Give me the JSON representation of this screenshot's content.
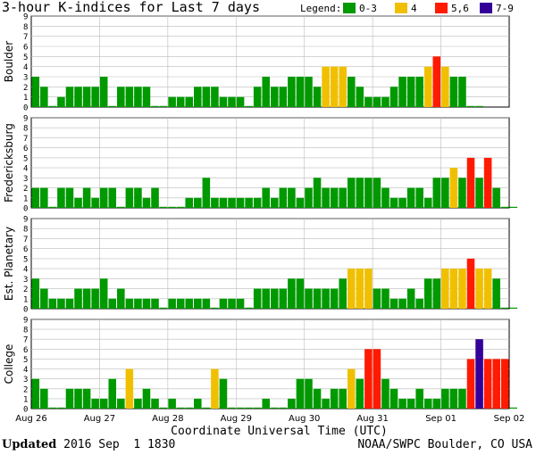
{
  "chart_data": {
    "type": "bar",
    "title": "3-hour K-indices for Last 7 days",
    "legend_title": "Legend:",
    "legend": [
      {
        "label": "0-3",
        "color": "#009900"
      },
      {
        "label": "4",
        "color": "#f0c000"
      },
      {
        "label": "5,6",
        "color": "#ff1a00"
      },
      {
        "label": "7-9",
        "color": "#330099"
      }
    ],
    "ylim": [
      0,
      9
    ],
    "yticks": [
      "0",
      "1",
      "2",
      "3",
      "4",
      "5",
      "6",
      "7",
      "8",
      "9"
    ],
    "xlabel": "Coordinate Universal Time (UTC)",
    "xticks": [
      "Aug 26",
      "Aug 27",
      "Aug 28",
      "Aug 29",
      "Aug 30",
      "Aug 31",
      "Sep 01",
      "Sep 02"
    ],
    "intervals_per_day": 8,
    "series": [
      {
        "name": "Boulder",
        "values": [
          3,
          2,
          0,
          1,
          2,
          2,
          2,
          2,
          3,
          0,
          2,
          2,
          2,
          2,
          0,
          0,
          1,
          1,
          1,
          2,
          2,
          2,
          1,
          1,
          1,
          0,
          2,
          3,
          2,
          2,
          3,
          3,
          3,
          2,
          4,
          4,
          4,
          3,
          2,
          1,
          1,
          1,
          2,
          3,
          3,
          3,
          4,
          5,
          4,
          3,
          3,
          0,
          0
        ]
      },
      {
        "name": "Fredericksburg",
        "values": [
          2,
          2,
          0,
          2,
          2,
          1,
          2,
          1,
          2,
          2,
          0,
          2,
          2,
          1,
          2,
          0,
          0,
          0,
          1,
          1,
          3,
          1,
          1,
          1,
          1,
          1,
          1,
          2,
          1,
          2,
          2,
          1,
          2,
          3,
          2,
          2,
          2,
          3,
          3,
          3,
          3,
          2,
          1,
          1,
          2,
          2,
          1,
          3,
          3,
          4,
          3,
          5,
          3,
          5,
          2,
          0,
          0
        ]
      },
      {
        "name": "Est. Planetary",
        "values": [
          3,
          2,
          1,
          1,
          1,
          2,
          2,
          2,
          3,
          1,
          2,
          1,
          1,
          1,
          1,
          0,
          1,
          1,
          1,
          1,
          1,
          0,
          1,
          1,
          1,
          0,
          2,
          2,
          2,
          2,
          3,
          3,
          2,
          2,
          2,
          2,
          3,
          4,
          4,
          4,
          2,
          2,
          1,
          1,
          2,
          1,
          3,
          3,
          4,
          4,
          4,
          5,
          4,
          4,
          3,
          0,
          0
        ]
      },
      {
        "name": "College",
        "values": [
          3,
          2,
          0,
          0,
          2,
          2,
          2,
          1,
          1,
          3,
          1,
          4,
          1,
          2,
          1,
          0,
          1,
          0,
          0,
          1,
          0,
          4,
          3,
          0,
          0,
          0,
          0,
          1,
          0,
          0,
          1,
          3,
          3,
          2,
          1,
          2,
          2,
          4,
          3,
          6,
          6,
          3,
          2,
          1,
          1,
          2,
          1,
          1,
          2,
          2,
          2,
          5,
          7,
          5,
          5,
          5,
          0
        ]
      }
    ]
  },
  "footer": {
    "updated_label": "Updated",
    "updated_value": " 2016 Sep  1 1830",
    "credit": "NOAA/SWPC Boulder, CO USA"
  }
}
